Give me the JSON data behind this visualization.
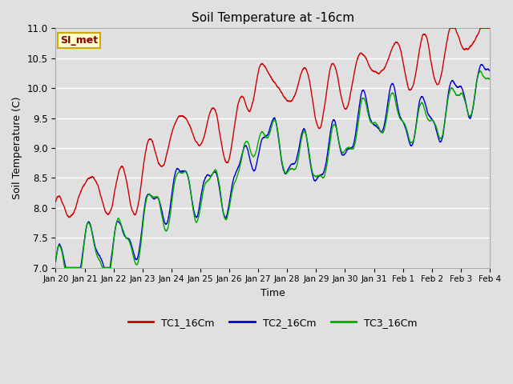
{
  "title": "Soil Temperature at -16cm",
  "xlabel": "Time",
  "ylabel": "Soil Temperature (C)",
  "ylim": [
    7.0,
    11.0
  ],
  "yticks": [
    7.0,
    7.5,
    8.0,
    8.5,
    9.0,
    9.5,
    10.0,
    10.5,
    11.0
  ],
  "plot_bg_color": "#e0e0e0",
  "grid_color": "#ffffff",
  "line_colors": {
    "TC1_16Cm": "#cc0000",
    "TC2_16Cm": "#0000cc",
    "TC3_16Cm": "#00aa00"
  },
  "legend_labels": [
    "TC1_16Cm",
    "TC2_16Cm",
    "TC3_16Cm"
  ],
  "annotation_text": "SI_met",
  "annotation_bg": "#ffffcc",
  "annotation_border": "#ccaa00",
  "annotation_text_color": "#880000",
  "x_tick_labels": [
    "Jan 20",
    "Jan 21",
    "Jan 22",
    "Jan 23",
    "Jan 24",
    "Jan 25",
    "Jan 26",
    "Jan 27",
    "Jan 28",
    "Jan 29",
    "Jan 30",
    "Jan 31",
    "Feb 1",
    "Feb 2",
    "Feb 3",
    "Feb 4"
  ],
  "num_points": 3600
}
